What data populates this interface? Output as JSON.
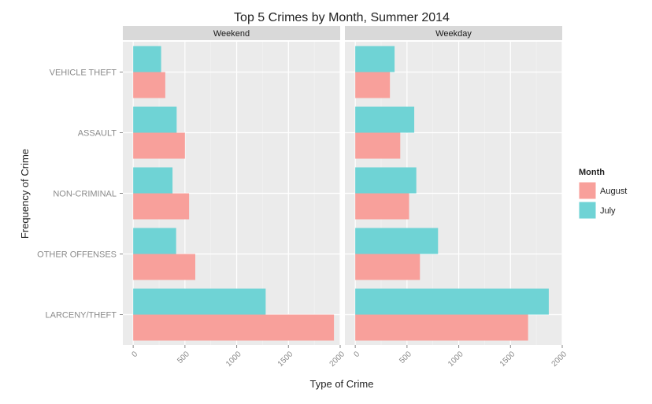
{
  "chart_data": {
    "type": "bar",
    "orientation": "horizontal",
    "title": "Top 5 Crimes by Month, Summer 2014",
    "xlabel": "Type of Crime",
    "ylabel": "Frequency of Crime",
    "xlim": [
      -100,
      2000
    ],
    "xticks": [
      "0",
      "500",
      "1000",
      "1500",
      "2000"
    ],
    "categories": [
      "VEHICLE THEFT",
      "ASSAULT",
      "NON-CRIMINAL",
      "OTHER OFFENSES",
      "LARCENY/THEFT"
    ],
    "legend": {
      "title": "Month",
      "position": "right",
      "entries": [
        "August",
        "July"
      ]
    },
    "colors": {
      "August": "#f8a09b",
      "July": "#6fd3d5",
      "panel": "#ebebeb",
      "strip": "#d9d9d9",
      "grid": "#ffffff"
    },
    "panels": [
      {
        "name": "Weekend",
        "series": [
          {
            "name": "July",
            "values": [
              270,
              420,
              380,
              415,
              1280
            ]
          },
          {
            "name": "August",
            "values": [
              310,
              500,
              540,
              600,
              1940
            ]
          }
        ]
      },
      {
        "name": "Weekday",
        "series": [
          {
            "name": "July",
            "values": [
              380,
              570,
              590,
              800,
              1870
            ]
          },
          {
            "name": "August",
            "values": [
              335,
              435,
              520,
              625,
              1670
            ]
          }
        ]
      }
    ]
  }
}
